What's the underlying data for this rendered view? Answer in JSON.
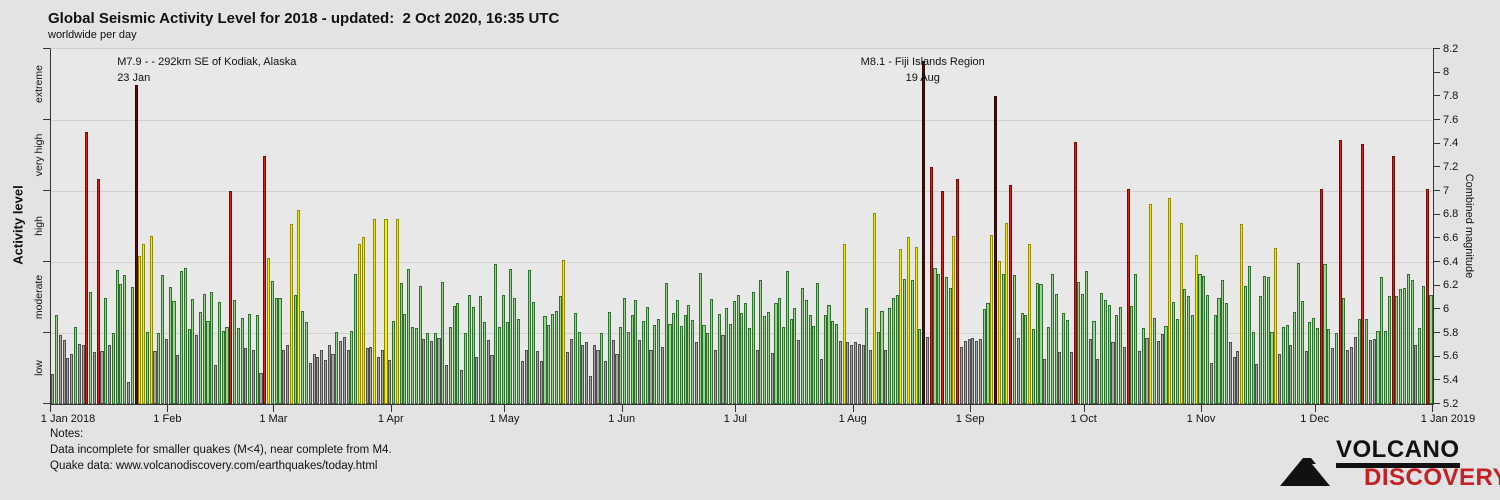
{
  "header": {
    "title": "Global Seismic Activity Level for 2018 - updated:  2 Oct 2020, 16:35 UTC",
    "subtitle": "worldwide per day"
  },
  "chart_data": {
    "type": "bar",
    "title": "Global Seismic Activity Level for 2018",
    "y_left": {
      "label": "Activity level",
      "categories": [
        "low",
        "moderate",
        "high",
        "very high",
        "extreme"
      ]
    },
    "y_right": {
      "label": "Combined magnitude",
      "min": 5.2,
      "max": 8.2,
      "tick_step": 0.2,
      "tick_labels": [
        "5.2",
        "5.4",
        "5.6",
        "5.8",
        "6",
        "6.2",
        "6.4",
        "6.6",
        "6.8",
        "7",
        "7.2",
        "7.4",
        "7.6",
        "7.8",
        "8",
        "8.2"
      ]
    },
    "x": {
      "month_labels": [
        "1 Jan 2018",
        "1 Feb",
        "1 Mar",
        "1 Apr",
        "1 May",
        "1 Jun",
        "1 Jul",
        "1 Aug",
        "1 Sep",
        "1 Oct",
        "1 Nov",
        "1 Dec",
        "1 Jan 2019"
      ]
    },
    "bands": [
      {
        "name": "low",
        "max": 5.8,
        "fill": "#a5a5a5",
        "stroke": "#4f4f4f"
      },
      {
        "name": "moderate",
        "max": 6.4,
        "fill": "#98d68e",
        "stroke": "#2f6f2f"
      },
      {
        "name": "high",
        "max": 7.0,
        "fill": "#f4f00a",
        "stroke": "#8f8a00"
      },
      {
        "name": "very high",
        "max": 7.6,
        "fill": "#dd2218",
        "stroke": "#6e0d08"
      },
      {
        "name": "extreme",
        "max": 8.2,
        "fill": "#560e0c",
        "stroke": "#2a0605"
      }
    ],
    "grid_boundaries": [
      5.2,
      5.8,
      6.4,
      7.0,
      7.6,
      8.2
    ],
    "values_by_month": [
      [
        5.45,
        5.95,
        5.78,
        5.74,
        5.59,
        5.62,
        5.85,
        5.71,
        5.7,
        7.5,
        6.15,
        5.64,
        7.1,
        5.65,
        6.1,
        5.7,
        5.8,
        6.33,
        6.21,
        6.29,
        5.39,
        6.19,
        7.9,
        6.45,
        6.55,
        5.81,
        6.62,
        5.65,
        5.8,
        6.29,
        5.75
      ],
      [
        6.19,
        6.07,
        5.61,
        6.32,
        6.35,
        5.83,
        6.09,
        5.78,
        5.98,
        6.13,
        5.9,
        6.15,
        5.53,
        6.06,
        5.82,
        5.85,
        7.0,
        6.08,
        5.84,
        5.93,
        5.67,
        5.96,
        5.66,
        5.95,
        5.46,
        7.3,
        6.43,
        6.24
      ],
      [
        6.1,
        6.1,
        5.66,
        5.7,
        6.72,
        6.12,
        6.84,
        5.99,
        5.89,
        5.55,
        5.62,
        5.6,
        5.66,
        5.57,
        5.7,
        5.62,
        5.81,
        5.73,
        5.77,
        5.66,
        5.82,
        6.3,
        6.55,
        6.61,
        5.67,
        5.68,
        6.76,
        5.6,
        5.66,
        6.76,
        5.57
      ],
      [
        5.9,
        6.76,
        6.22,
        5.96,
        6.34,
        5.85,
        5.84,
        6.2,
        5.75,
        5.8,
        5.73,
        5.8,
        5.76,
        6.23,
        5.53,
        5.85,
        6.03,
        6.05,
        5.49,
        5.8,
        6.12,
        6.02,
        5.6,
        6.11,
        5.89,
        5.74,
        5.61,
        6.38,
        5.85,
        6.12
      ],
      [
        5.89,
        6.34,
        6.1,
        5.92,
        5.56,
        5.66,
        6.33,
        6.06,
        5.65,
        5.56,
        5.94,
        5.87,
        5.96,
        5.99,
        6.11,
        6.42,
        5.64,
        5.75,
        5.97,
        5.81,
        5.7,
        5.72,
        5.44,
        5.7,
        5.66,
        5.8,
        5.56,
        5.98,
        5.74,
        5.62,
        5.85
      ],
      [
        6.1,
        5.81,
        5.95,
        6.08,
        5.74,
        5.9,
        6.02,
        5.66,
        5.87,
        5.92,
        5.68,
        6.22,
        5.88,
        5.97,
        6.08,
        5.86,
        5.95,
        6.04,
        5.91,
        5.72,
        6.31,
        5.87,
        5.8,
        6.09,
        5.66,
        5.96,
        5.78,
        6.01,
        5.88,
        6.07
      ],
      [
        6.12,
        5.97,
        6.05,
        5.84,
        6.15,
        5.66,
        6.25,
        5.94,
        5.98,
        5.63,
        6.05,
        6.1,
        5.85,
        6.32,
        5.92,
        6.01,
        5.74,
        6.18,
        6.08,
        5.95,
        5.86,
        6.22,
        5.58,
        5.95,
        6.04,
        5.9,
        5.88,
        5.73,
        6.55,
        5.72,
        5.7
      ],
      [
        5.72,
        5.71,
        5.7,
        6.01,
        5.66,
        6.81,
        5.81,
        5.99,
        5.66,
        6.01,
        6.1,
        6.12,
        6.51,
        6.26,
        6.61,
        6.25,
        6.53,
        5.83,
        8.1,
        5.77,
        7.2,
        6.35,
        6.3,
        7.0,
        6.27,
        6.18,
        6.62,
        7.1,
        5.68,
        5.73,
        5.75
      ],
      [
        5.76,
        5.73,
        5.75,
        6.0,
        6.05,
        6.63,
        7.8,
        6.41,
        6.3,
        6.73,
        7.05,
        6.29,
        5.76,
        5.97,
        5.95,
        6.55,
        5.83,
        6.22,
        6.21,
        5.58,
        5.85,
        6.3,
        6.13,
        5.64,
        5.97,
        5.91,
        5.64,
        7.41,
        6.23,
        6.13
      ],
      [
        6.32,
        5.75,
        5.9,
        5.58,
        6.14,
        6.08,
        6.04,
        5.72,
        5.95,
        6.02,
        5.68,
        7.02,
        6.03,
        6.3,
        5.65,
        5.84,
        5.76,
        6.89,
        5.93,
        5.73,
        5.79,
        5.86,
        6.94,
        6.06,
        5.92,
        6.73,
        6.17,
        6.11,
        5.95,
        6.46,
        6.3
      ],
      [
        6.28,
        6.12,
        5.55,
        5.95,
        6.1,
        6.25,
        6.05,
        5.72,
        5.6,
        5.65,
        6.72,
        6.2,
        6.37,
        5.81,
        5.54,
        6.11,
        6.28,
        6.27,
        5.81,
        6.52,
        5.62,
        5.85,
        5.87,
        5.7,
        5.98,
        6.39,
        6.07,
        5.65,
        5.89,
        5.93
      ],
      [
        5.84,
        7.02,
        6.38,
        5.83,
        5.67,
        5.8,
        7.43,
        6.1,
        5.66,
        5.68,
        5.77,
        5.92,
        7.4,
        5.92,
        5.74,
        5.75,
        5.82,
        6.27,
        5.82,
        6.11,
        7.3,
        6.11,
        6.17,
        6.18,
        6.3,
        6.25,
        5.7,
        5.84,
        6.2,
        7.02,
        6.12
      ]
    ],
    "annotations": [
      {
        "line1": "M7.9 - - 292km SE of Kodiak, Alaska",
        "line2": "23 Jan",
        "day_index": 22,
        "align": "left"
      },
      {
        "line1": "M8.1 - Fiji Islands Region",
        "line2": "19 Aug",
        "day_index": 230,
        "align": "center"
      }
    ]
  },
  "notes": {
    "heading": "Notes:",
    "line1": "Data incomplete for smaller quakes (M<4), near complete from M4.",
    "line2": "Quake data: www.volcanodiscovery.com/earthquakes/today.html"
  },
  "logo": {
    "line1": "VOLCANO",
    "line2": "DISCOVERY",
    "accent_color": "#c42127"
  }
}
